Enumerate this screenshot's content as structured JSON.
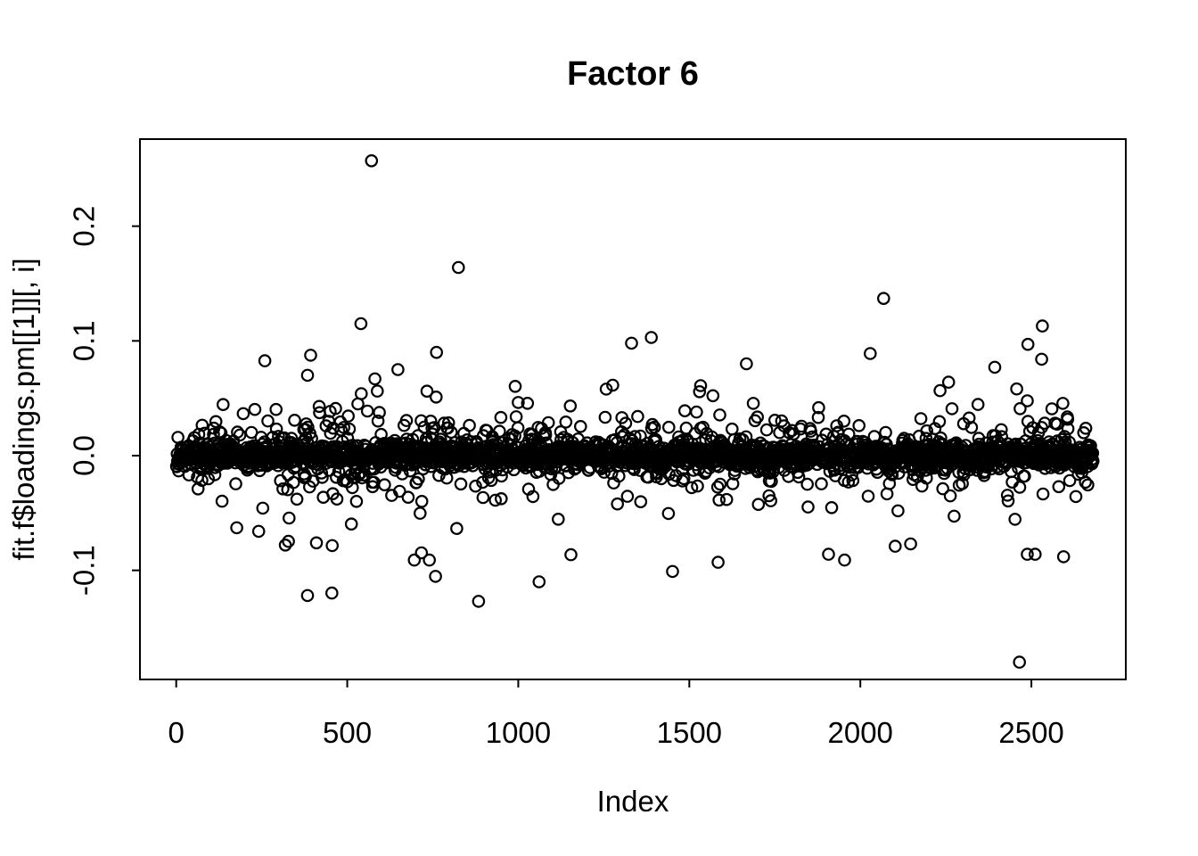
{
  "figure": {
    "background_color": "#ffffff",
    "foreground_color": "#000000"
  },
  "chart": {
    "title": "Factor 6",
    "xlabel": "Index",
    "ylabel": "fit.f$loadings.pm[[1]][, i]"
  },
  "chart_data": {
    "type": "scatter",
    "title": "Factor 6",
    "xlabel": "Index",
    "ylabel": "fit.f$loadings.pm[[1]][, i]",
    "description": "R base-graphics index plot of posterior-mean factor loadings for Factor 6. ~2680 points drawn as open black circles; dense band centered at 0 (most |y| < 0.03) with region-dependent spread and a number of outliers.",
    "n_points": 2680,
    "x_values": "1..2680 (row index)",
    "xlim": [
      -106,
      2776
    ],
    "ylim": [
      -0.1951,
      0.2759
    ],
    "x_ticks": [
      0,
      500,
      1000,
      1500,
      2000,
      2500
    ],
    "x_tick_labels": [
      "0",
      "500",
      "1000",
      "1500",
      "2000",
      "2500"
    ],
    "y_ticks": [
      -0.1,
      0.0,
      0.1,
      0.2
    ],
    "y_tick_labels": [
      "-0.1",
      "0.0",
      "0.1",
      "0.2"
    ],
    "grid": false,
    "legend": false,
    "marker": {
      "shape": "open-circle",
      "color": "#000000",
      "radius_px": 6.2,
      "stroke_px": 2.2
    },
    "bulk": {
      "model": "mixture of normals around 0; sd varies with index (piecewise-linear profile)",
      "seed": 1234567,
      "core_weight": 0.74,
      "core_sd": 0.0055,
      "mid_weight": 0.2,
      "tail_weight": 0.06,
      "tail_sd_factor": 2.0,
      "clamp_abs_y": 0.132,
      "sd_profile": [
        [
          0,
          0.009
        ],
        [
          100,
          0.013
        ],
        [
          200,
          0.018
        ],
        [
          350,
          0.021
        ],
        [
          500,
          0.023
        ],
        [
          650,
          0.023
        ],
        [
          800,
          0.019
        ],
        [
          950,
          0.014
        ],
        [
          1100,
          0.014
        ],
        [
          1250,
          0.016
        ],
        [
          1400,
          0.016
        ],
        [
          1550,
          0.015
        ],
        [
          1700,
          0.016
        ],
        [
          1850,
          0.016
        ],
        [
          2000,
          0.016
        ],
        [
          2150,
          0.014
        ],
        [
          2300,
          0.016
        ],
        [
          2450,
          0.019
        ],
        [
          2600,
          0.021
        ],
        [
          2680,
          0.021
        ]
      ]
    },
    "outliers": [
      [
        571,
        0.257
      ],
      [
        825,
        0.164
      ],
      [
        2068,
        0.137
      ],
      [
        540,
        0.115
      ],
      [
        2532,
        0.113
      ],
      [
        1389,
        0.103
      ],
      [
        1331,
        0.098
      ],
      [
        2490,
        0.097
      ],
      [
        761,
        0.09
      ],
      [
        2029,
        0.089
      ],
      [
        2530,
        0.084
      ],
      [
        1667,
        0.08
      ],
      [
        2393,
        0.077
      ],
      [
        384,
        0.07
      ],
      [
        648,
        0.075
      ],
      [
        1533,
        0.061
      ],
      [
        1257,
        0.058
      ],
      [
        2258,
        0.064
      ],
      [
        2465,
        -0.18
      ],
      [
        884,
        -0.127
      ],
      [
        384,
        -0.122
      ],
      [
        1061,
        -0.11
      ],
      [
        1451,
        -0.101
      ],
      [
        1584,
        -0.093
      ],
      [
        696,
        -0.091
      ],
      [
        740,
        -0.091
      ],
      [
        1954,
        -0.091
      ],
      [
        1907,
        -0.086
      ],
      [
        2488,
        -0.086
      ],
      [
        2511,
        -0.086
      ],
      [
        2102,
        -0.079
      ],
      [
        2147,
        -0.077
      ],
      [
        319,
        -0.078
      ],
      [
        410,
        -0.076
      ],
      [
        241,
        -0.066
      ]
    ]
  }
}
